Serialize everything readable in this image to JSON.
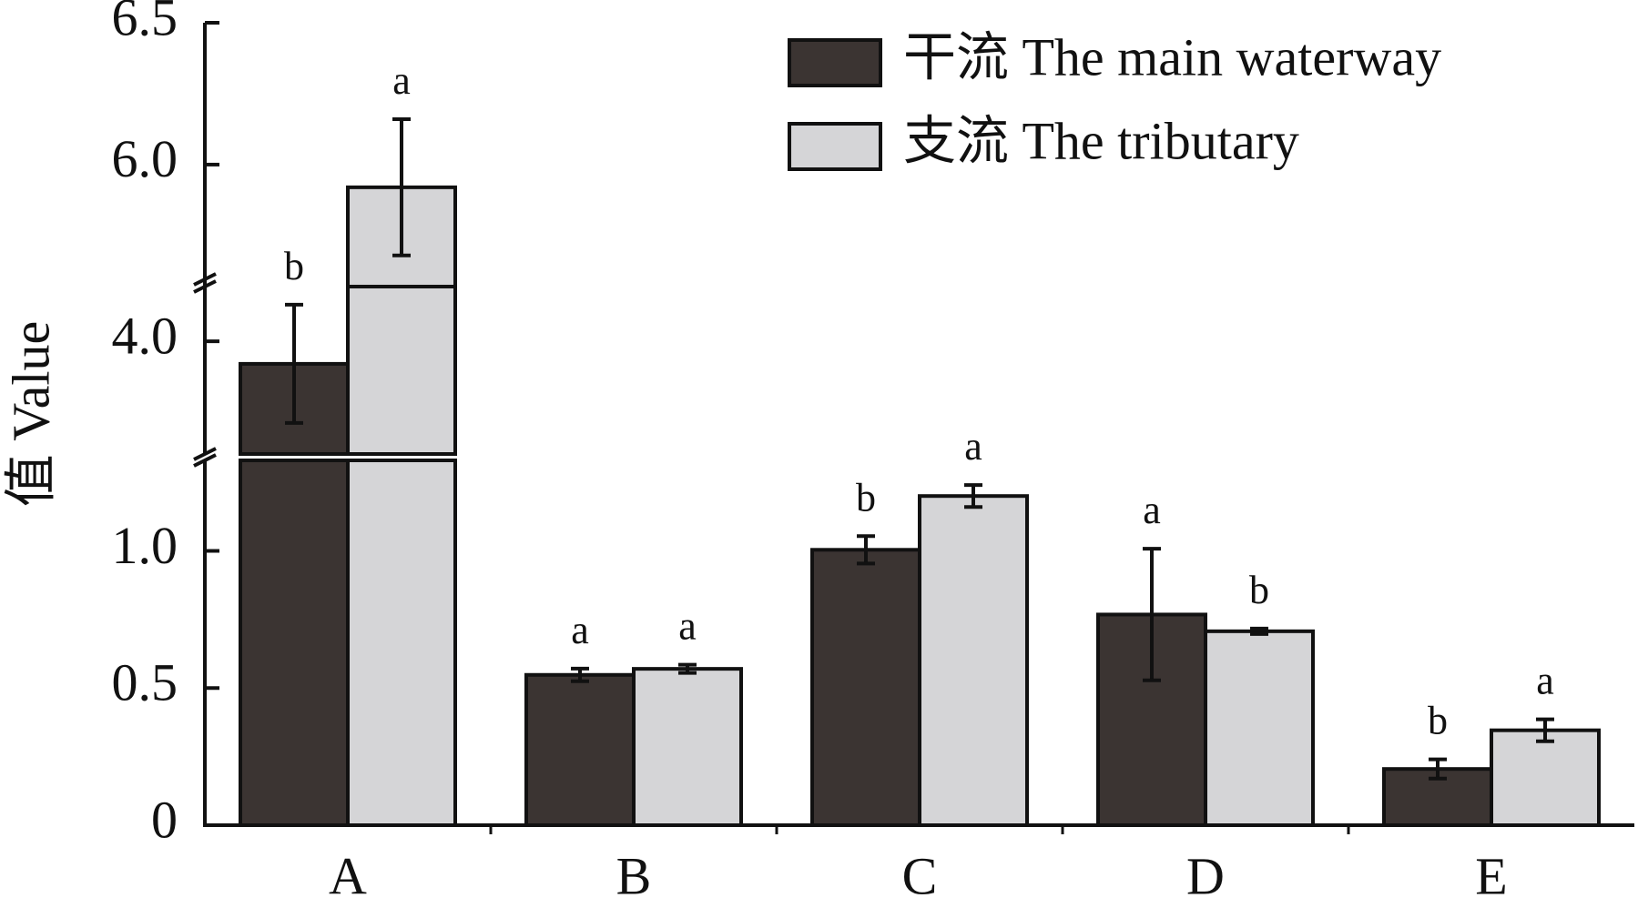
{
  "chart_data": {
    "type": "bar",
    "y_label": "值 Value",
    "categories": [
      "A",
      "B",
      "C",
      "D",
      "E"
    ],
    "segments": [
      {
        "ylim": [
          0,
          1.33
        ],
        "yticks": [
          0,
          0.5,
          {
            "value": 1,
            "label": "1.0"
          }
        ]
      },
      {
        "ylim": [
          3.6,
          4.22
        ],
        "yticks": [
          {
            "value": 4,
            "label": "4.0"
          }
        ]
      },
      {
        "ylim": [
          5.57,
          6.5
        ],
        "yticks": [
          {
            "value": 6,
            "label": "6.0"
          },
          6.5
        ]
      }
    ],
    "series": [
      {
        "name": "干流 The main waterway",
        "color": "#3b3432",
        "values": [
          3.92,
          0.548,
          1.004,
          0.768,
          0.205
        ],
        "errors": [
          0.21,
          0.023,
          0.05,
          0.24,
          0.035
        ],
        "letters": [
          "b",
          "a",
          "b",
          "a",
          "b"
        ]
      },
      {
        "name": "支流 The tributary",
        "color": "#d5d5d7",
        "values": [
          5.92,
          0.57,
          1.2,
          0.707,
          0.346
        ],
        "errors": [
          0.24,
          0.015,
          0.04,
          0.01,
          0.04
        ],
        "letters": [
          "a",
          "a",
          "a",
          "b",
          "a"
        ]
      }
    ]
  }
}
